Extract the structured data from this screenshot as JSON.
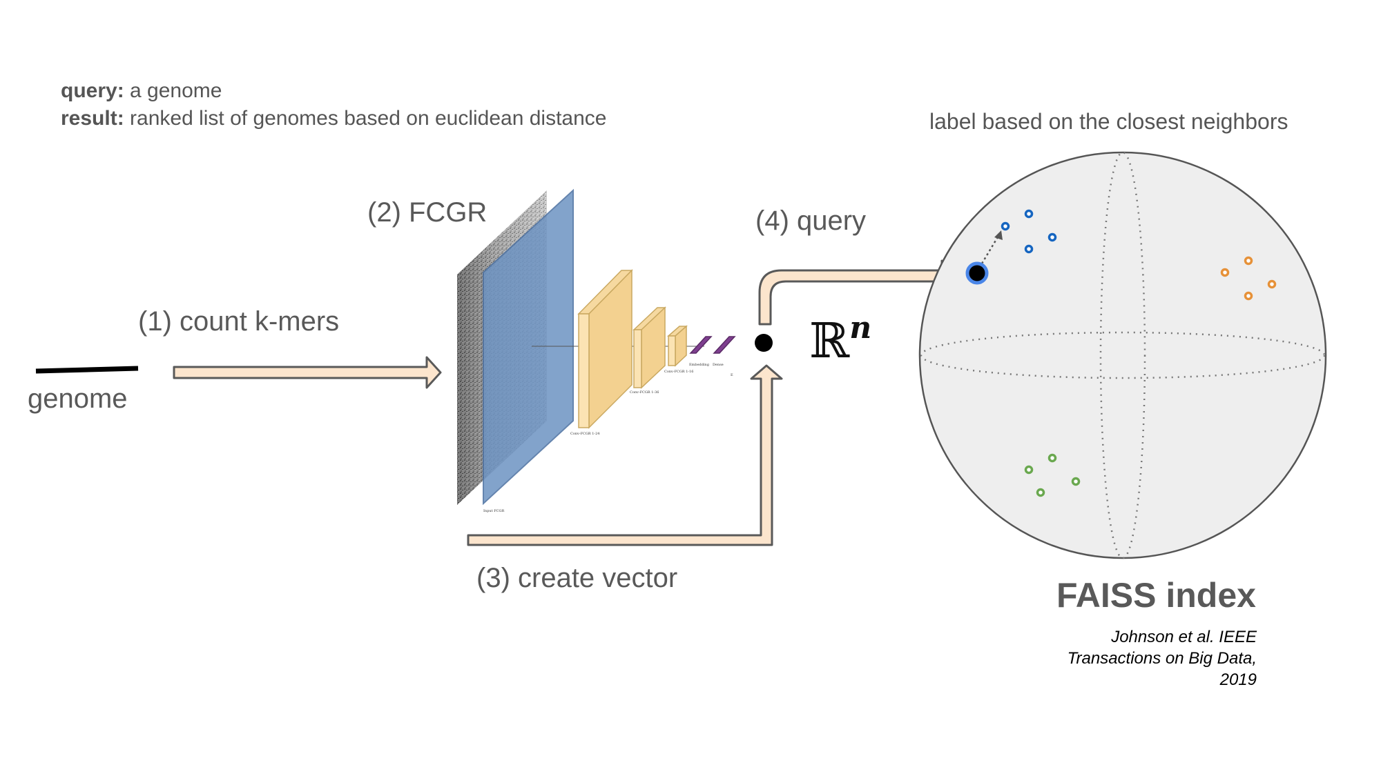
{
  "header": {
    "query_label": "query:",
    "query_text": " a genome",
    "result_label": "result:",
    "result_text": " ranked list of genomes based on euclidean distance"
  },
  "steps": {
    "count_kmers": "(1) count k-mers",
    "fcgr": "(2) FCGR",
    "create_vector": "(3) create vector",
    "query": "(4) query"
  },
  "genome_label": "genome",
  "vector_space": {
    "symbol": "ℝ",
    "exponent": "n"
  },
  "sphere": {
    "caption": "label based on the closest neighbors",
    "clusters": [
      {
        "name": "blue",
        "color": "#1565c0"
      },
      {
        "name": "orange",
        "color": "#e69138"
      },
      {
        "name": "green",
        "color": "#6aa84f"
      }
    ],
    "query_point_color": "#4a86e8"
  },
  "faiss": {
    "title": "FAISS index",
    "citation": "Johnson et al. IEEE Transactions on Big Data, 2019"
  },
  "cnn": {
    "input_label": "Input FCGR",
    "layers": [
      "Conv-FCGR 1-24",
      "Conv-FCGR 1-36",
      "Conv-FCGR 1-16",
      "Embedding",
      "Dense",
      "E"
    ]
  },
  "colors": {
    "arrow_fill": "#fce5cd",
    "arrow_stroke": "#595959",
    "input_blue": "#6d93c2",
    "conv_fill": "#fbe3b3",
    "dense_purple": "#7e3f8f",
    "sphere_fill": "#eeeeee"
  }
}
